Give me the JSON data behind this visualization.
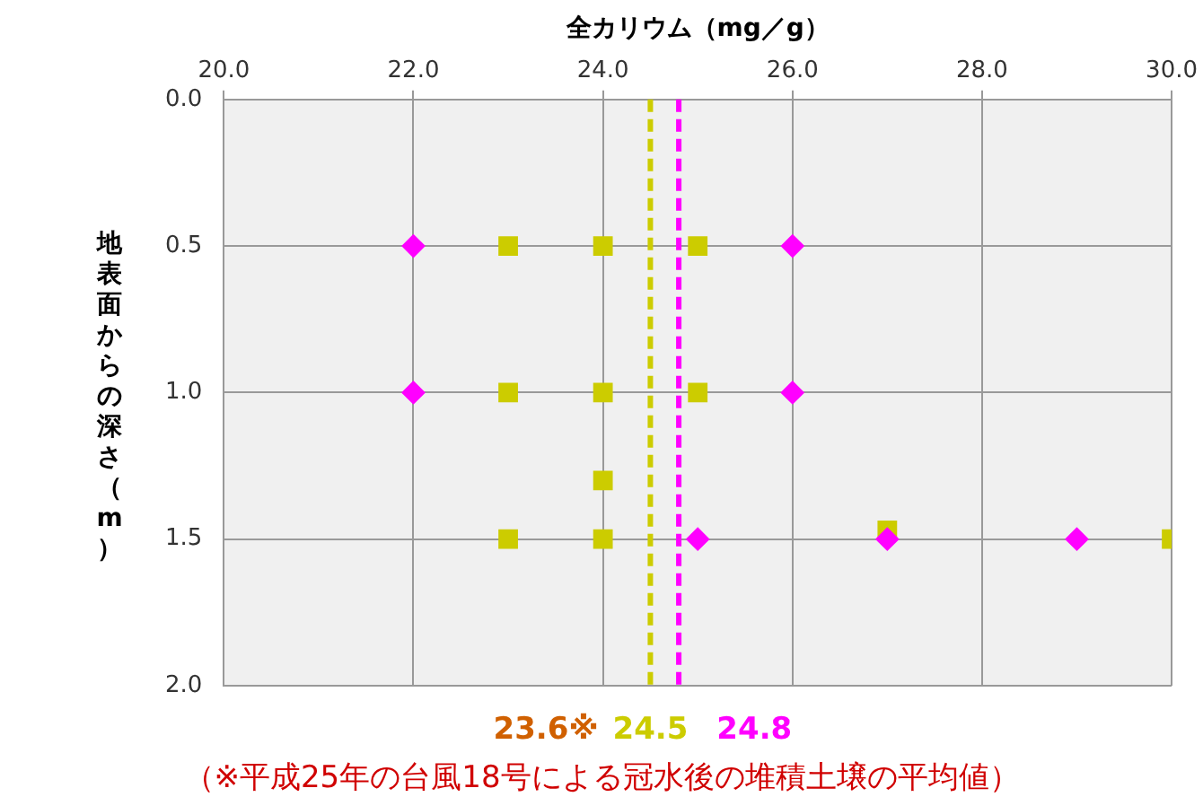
{
  "chart_data": {
    "type": "scatter",
    "xlabel": "全カリウム（mg／g）",
    "ylabel": "地表面からの深さ（m）",
    "xlim": [
      20,
      30
    ],
    "xticks": [
      {
        "value": 20,
        "label": "20.0"
      },
      {
        "value": 22,
        "label": "22.0"
      },
      {
        "value": 24,
        "label": "24.0"
      },
      {
        "value": 26,
        "label": "26.0"
      },
      {
        "value": 28,
        "label": "28.0"
      },
      {
        "value": 30,
        "label": "30.0"
      }
    ],
    "ylim": [
      2.0,
      0.0
    ],
    "yticks": [
      {
        "value": 0,
        "label": "0.0"
      },
      {
        "value": 0.5,
        "label": "0.5"
      },
      {
        "value": 1,
        "label": "1.0"
      },
      {
        "value": 1.5,
        "label": "1.5"
      },
      {
        "value": 2,
        "label": "2.0"
      }
    ],
    "grid": true,
    "legend": false,
    "series": [
      {
        "color": "#ff00ff",
        "marker": "diamond",
        "x": [
          22.0,
          26.0,
          22.0,
          26.0,
          25.0,
          27.0,
          29.0
        ],
        "values": [
          0.5,
          0.5,
          1.0,
          1.0,
          1.5,
          1.5,
          1.5
        ]
      },
      {
        "color": "#cccc00",
        "marker": "square",
        "x": [
          23.0,
          24.0,
          25.0,
          23.0,
          24.0,
          25.0,
          24.0,
          23.0,
          24.0,
          27.0,
          30.0
        ],
        "values": [
          0.5,
          0.5,
          0.5,
          1.0,
          1.0,
          1.0,
          1.3,
          1.5,
          1.5,
          1.47,
          1.5
        ]
      }
    ],
    "ref_lines": [
      {
        "axis": "x",
        "value": 24.5,
        "label": "24.5",
        "color": "#cccc00",
        "line_style": "dashed"
      },
      {
        "axis": "x",
        "value": 24.8,
        "label": "24.8",
        "color": "#ff00ff",
        "line_style": "dashed"
      }
    ],
    "annotations": [
      "23.6※",
      "（※平成25年の台風18号による冠水後の堆積土壌の平均値）"
    ]
  }
}
